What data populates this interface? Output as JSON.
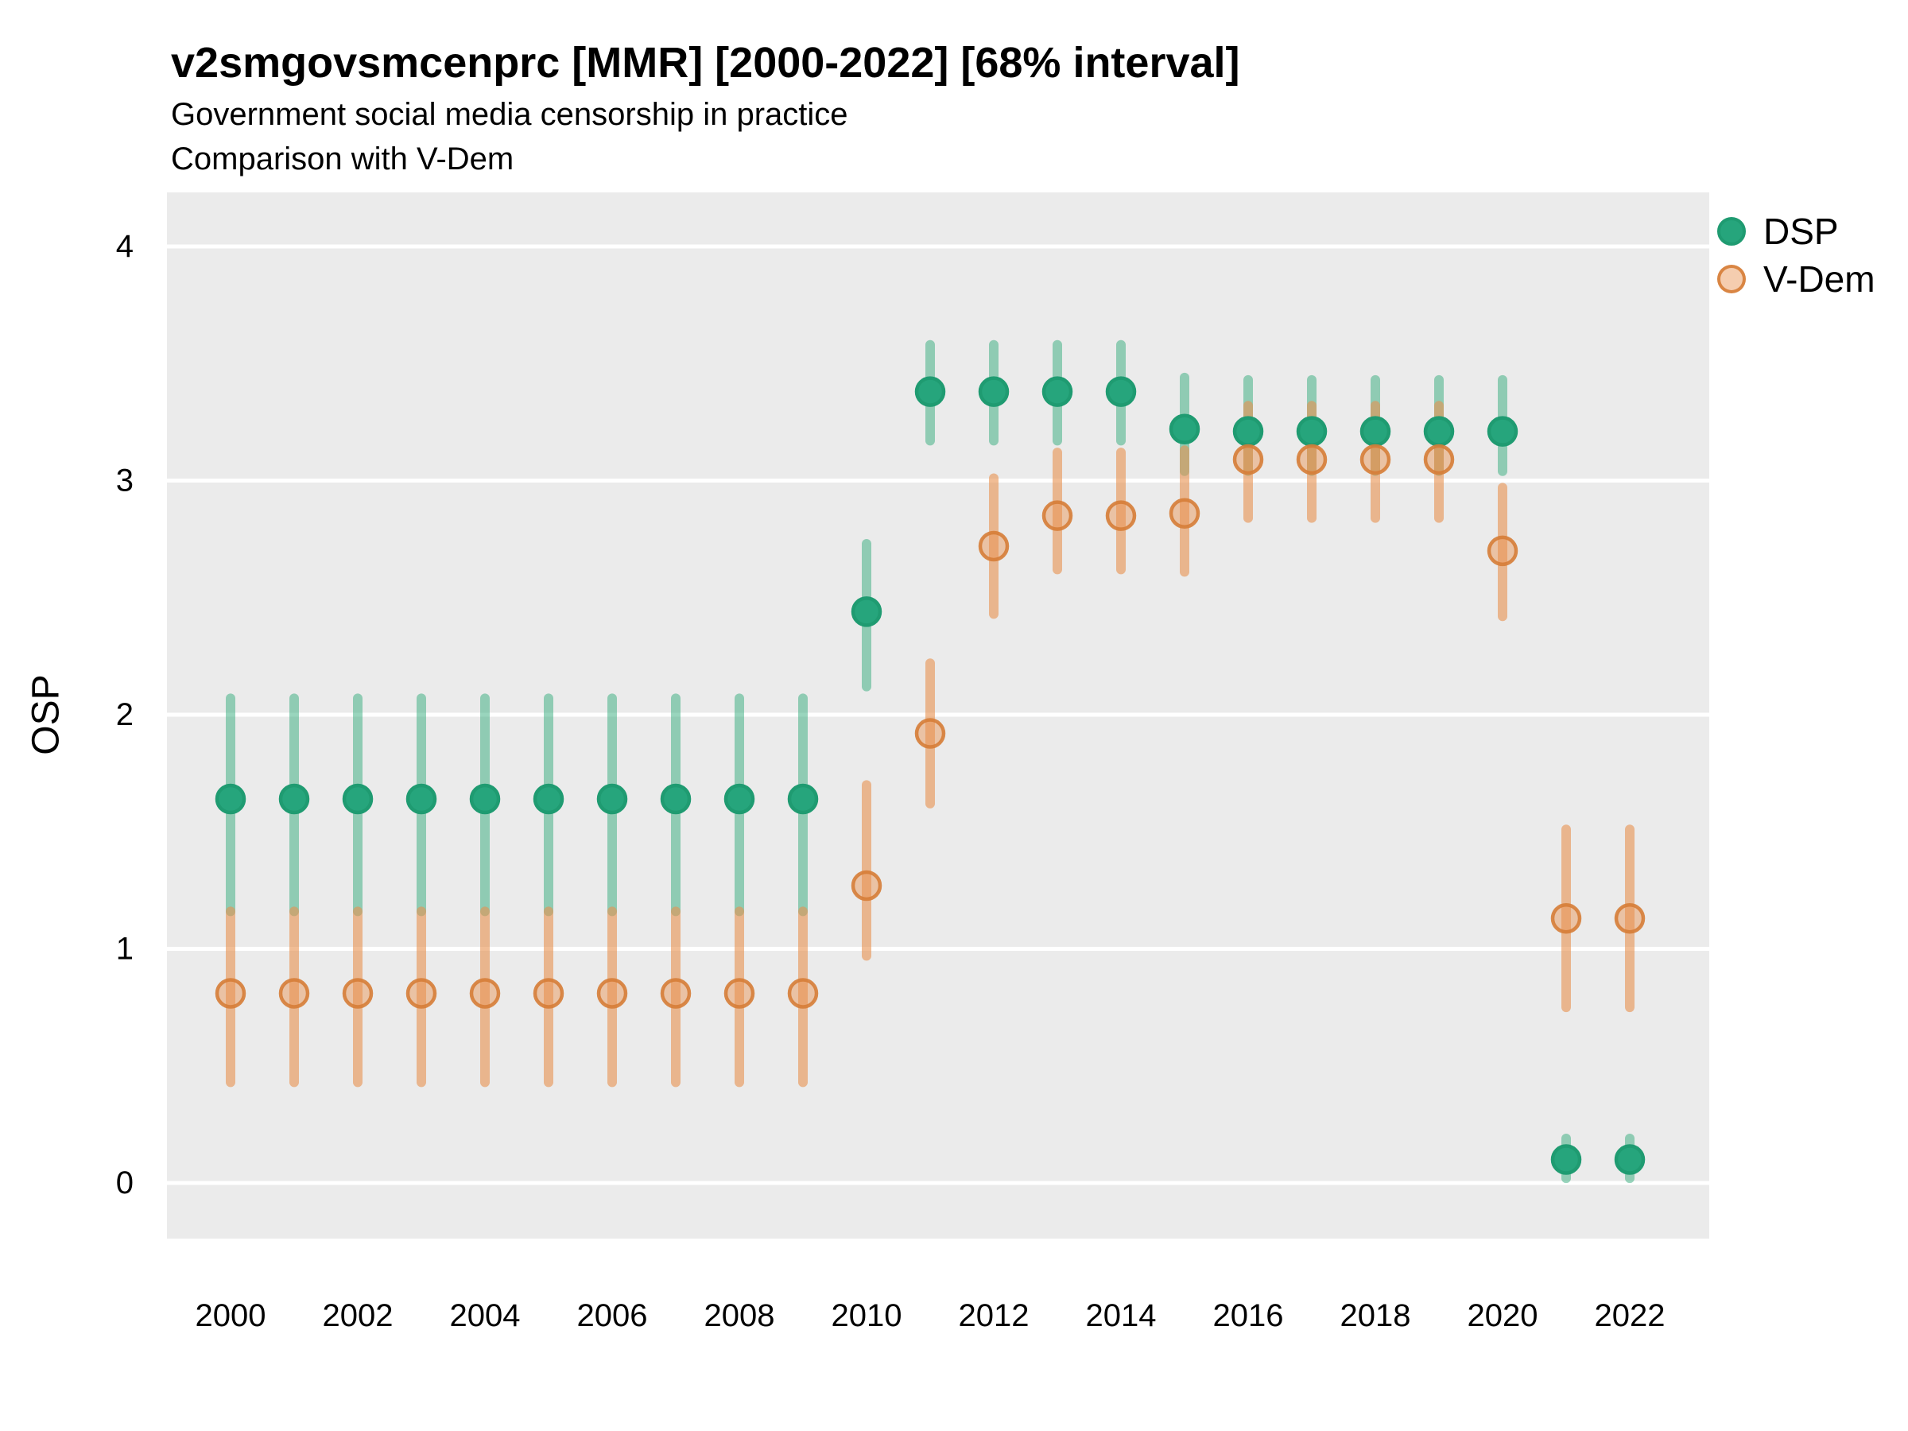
{
  "chart": {
    "title": "v2smgovsmcenprc [MMR] [2000-2022] [68% interval]",
    "subtitle1": "Government social media censorship in practice",
    "subtitle2": "Comparison with V-Dem",
    "y_axis_title": "OSP"
  },
  "chart_data": {
    "type": "pointrange",
    "title": "v2smgovsmcenprc [MMR] [2000-2022] [68% interval]",
    "subtitle": [
      "Government social media censorship in practice",
      "Comparison with V-Dem"
    ],
    "xlabel": "",
    "ylabel": "OSP",
    "ylim": [
      -0.22,
      4.22
    ],
    "y_ticks": [
      0,
      1,
      2,
      3,
      4
    ],
    "x_tick_labels": [
      2000,
      2002,
      2004,
      2006,
      2008,
      2010,
      2012,
      2014,
      2016,
      2018,
      2020,
      2022
    ],
    "grid": "major-horizontal-white-on-gray",
    "legend_position": "right-top",
    "panel_background": "#ebebeb",
    "gridline_color": "#ffffff",
    "interval_level": "68%",
    "series": [
      {
        "name": "DSP",
        "color": "#26a57c",
        "points": [
          {
            "year": 2000,
            "lo": 1.16,
            "mid": 1.64,
            "hi": 2.07
          },
          {
            "year": 2001,
            "lo": 1.16,
            "mid": 1.64,
            "hi": 2.07
          },
          {
            "year": 2002,
            "lo": 1.16,
            "mid": 1.64,
            "hi": 2.07
          },
          {
            "year": 2003,
            "lo": 1.16,
            "mid": 1.64,
            "hi": 2.07
          },
          {
            "year": 2004,
            "lo": 1.16,
            "mid": 1.64,
            "hi": 2.07
          },
          {
            "year": 2005,
            "lo": 1.16,
            "mid": 1.64,
            "hi": 2.07
          },
          {
            "year": 2006,
            "lo": 1.16,
            "mid": 1.64,
            "hi": 2.07
          },
          {
            "year": 2007,
            "lo": 1.16,
            "mid": 1.64,
            "hi": 2.07
          },
          {
            "year": 2008,
            "lo": 1.16,
            "mid": 1.64,
            "hi": 2.07
          },
          {
            "year": 2009,
            "lo": 1.16,
            "mid": 1.64,
            "hi": 2.07
          },
          {
            "year": 2010,
            "lo": 2.12,
            "mid": 2.44,
            "hi": 2.73
          },
          {
            "year": 2011,
            "lo": 3.17,
            "mid": 3.38,
            "hi": 3.58
          },
          {
            "year": 2012,
            "lo": 3.17,
            "mid": 3.38,
            "hi": 3.58
          },
          {
            "year": 2013,
            "lo": 3.17,
            "mid": 3.38,
            "hi": 3.58
          },
          {
            "year": 2014,
            "lo": 3.17,
            "mid": 3.38,
            "hi": 3.58
          },
          {
            "year": 2015,
            "lo": 3.04,
            "mid": 3.22,
            "hi": 3.44
          },
          {
            "year": 2016,
            "lo": 3.04,
            "mid": 3.21,
            "hi": 3.43
          },
          {
            "year": 2017,
            "lo": 3.04,
            "mid": 3.21,
            "hi": 3.43
          },
          {
            "year": 2018,
            "lo": 3.04,
            "mid": 3.21,
            "hi": 3.43
          },
          {
            "year": 2019,
            "lo": 3.04,
            "mid": 3.21,
            "hi": 3.43
          },
          {
            "year": 2020,
            "lo": 3.04,
            "mid": 3.21,
            "hi": 3.43
          },
          {
            "year": 2021,
            "lo": 0.02,
            "mid": 0.1,
            "hi": 0.19
          },
          {
            "year": 2022,
            "lo": 0.02,
            "mid": 0.1,
            "hi": 0.19
          }
        ]
      },
      {
        "name": "V-Dem",
        "color": "#e8914e",
        "points": [
          {
            "year": 2000,
            "lo": 0.43,
            "mid": 0.81,
            "hi": 1.16
          },
          {
            "year": 2001,
            "lo": 0.43,
            "mid": 0.81,
            "hi": 1.16
          },
          {
            "year": 2002,
            "lo": 0.43,
            "mid": 0.81,
            "hi": 1.16
          },
          {
            "year": 2003,
            "lo": 0.43,
            "mid": 0.81,
            "hi": 1.16
          },
          {
            "year": 2004,
            "lo": 0.43,
            "mid": 0.81,
            "hi": 1.16
          },
          {
            "year": 2005,
            "lo": 0.43,
            "mid": 0.81,
            "hi": 1.16
          },
          {
            "year": 2006,
            "lo": 0.43,
            "mid": 0.81,
            "hi": 1.16
          },
          {
            "year": 2007,
            "lo": 0.43,
            "mid": 0.81,
            "hi": 1.16
          },
          {
            "year": 2008,
            "lo": 0.43,
            "mid": 0.81,
            "hi": 1.16
          },
          {
            "year": 2009,
            "lo": 0.43,
            "mid": 0.81,
            "hi": 1.16
          },
          {
            "year": 2010,
            "lo": 0.97,
            "mid": 1.27,
            "hi": 1.7
          },
          {
            "year": 2011,
            "lo": 1.62,
            "mid": 1.92,
            "hi": 2.22
          },
          {
            "year": 2012,
            "lo": 2.43,
            "mid": 2.72,
            "hi": 3.01
          },
          {
            "year": 2013,
            "lo": 2.62,
            "mid": 2.85,
            "hi": 3.12
          },
          {
            "year": 2014,
            "lo": 2.62,
            "mid": 2.85,
            "hi": 3.12
          },
          {
            "year": 2015,
            "lo": 2.61,
            "mid": 2.86,
            "hi": 3.13
          },
          {
            "year": 2016,
            "lo": 2.84,
            "mid": 3.09,
            "hi": 3.32
          },
          {
            "year": 2017,
            "lo": 2.84,
            "mid": 3.09,
            "hi": 3.32
          },
          {
            "year": 2018,
            "lo": 2.84,
            "mid": 3.09,
            "hi": 3.32
          },
          {
            "year": 2019,
            "lo": 2.84,
            "mid": 3.09,
            "hi": 3.32
          },
          {
            "year": 2020,
            "lo": 2.42,
            "mid": 2.7,
            "hi": 2.97
          },
          {
            "year": 2021,
            "lo": 0.75,
            "mid": 1.13,
            "hi": 1.51
          },
          {
            "year": 2022,
            "lo": 0.75,
            "mid": 1.13,
            "hi": 1.51
          }
        ]
      }
    ]
  }
}
